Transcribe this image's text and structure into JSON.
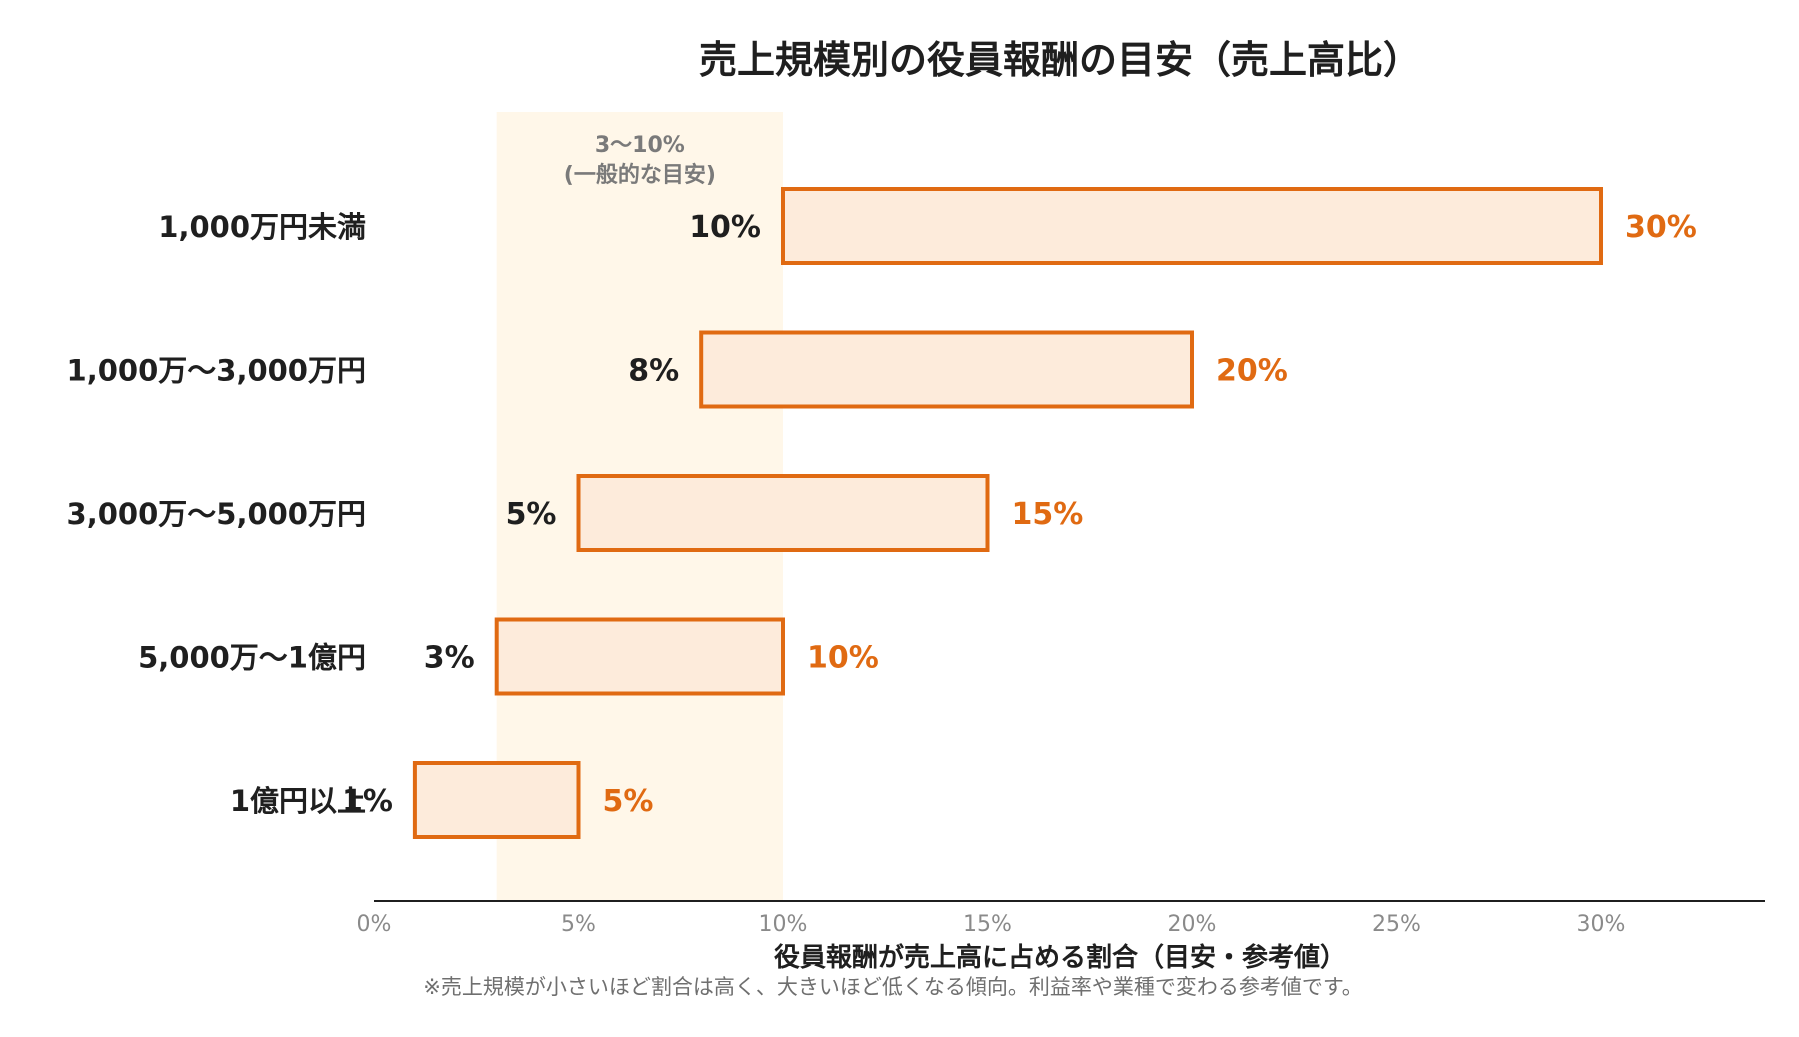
{
  "chart_data": {
    "type": "bar",
    "subtype": "floating-range-horizontal",
    "title": "売上規模別の役員報酬の目安（売上高比）",
    "xlabel": "役員報酬が売上高に占める割合（目安・参考値）",
    "ylabel": "",
    "note": "※売上規模が小さいほど割合は高く、大きいほど低くなる傾向。利益率や業種で変わる参考値です。",
    "xlim": [
      0,
      34
    ],
    "x_ticks": [
      0,
      5,
      10,
      15,
      20,
      25,
      30
    ],
    "x_tick_labels": [
      "0%",
      "5%",
      "10%",
      "15%",
      "20%",
      "25%",
      "30%"
    ],
    "categories": [
      "1,000万円未満",
      "1,000万〜3,000万円",
      "3,000万〜5,000万円",
      "5,000万〜1億円",
      "1億円以上"
    ],
    "low": [
      10,
      8,
      5,
      3,
      1
    ],
    "high": [
      30,
      20,
      15,
      10,
      5
    ],
    "low_labels": [
      "10%",
      "8%",
      "5%",
      "3%",
      "1%"
    ],
    "high_labels": [
      "30%",
      "20%",
      "15%",
      "10%",
      "5%"
    ],
    "reference_band": {
      "from": 3,
      "to": 10,
      "label_line1": "3〜10%",
      "label_line2": "(一般的な目安)"
    },
    "grid": false,
    "legend": "none",
    "colors": {
      "bar_fill": "#fdebdb",
      "bar_stroke": "#e06a12",
      "high_label": "#e06a12",
      "band_fill": "#fff7e9",
      "axis": "#1f1f1f"
    }
  }
}
